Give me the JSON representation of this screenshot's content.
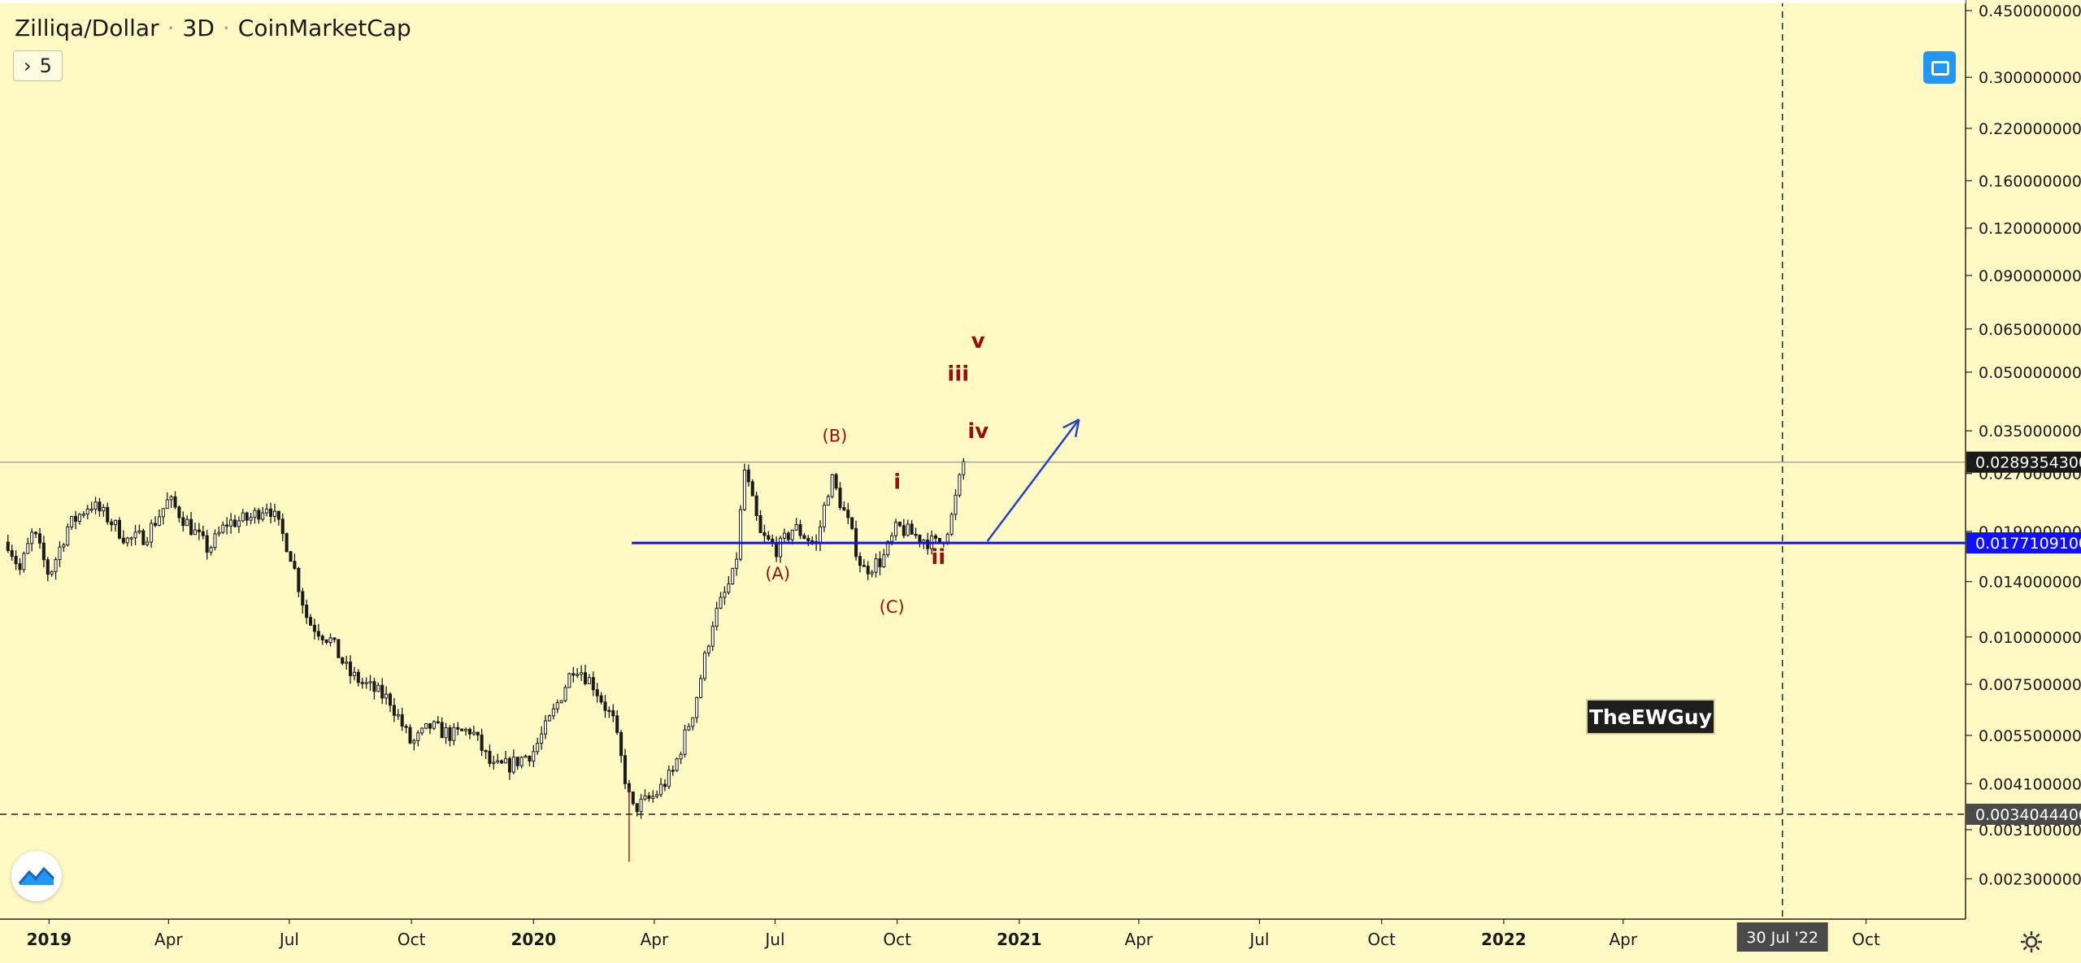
{
  "header": {
    "symbol": "Zilliqa/Dollar",
    "interval": "3D",
    "source": "CoinMarketCap",
    "indicator_count": "5"
  },
  "colors": {
    "background": "#fff9c4",
    "up_candle": "#ffffff",
    "down_candle": "#1a1a1a",
    "wick": "#1a1a1a",
    "annotation": "#9b0e0e",
    "support_line": "#1010ff",
    "arrow": "#2242d8"
  },
  "watermark": "TheEWGuy",
  "icons": [
    "chevron-right-icon",
    "fullscreen-icon",
    "tradingview-logo-icon",
    "gear-icon"
  ],
  "chart_data": {
    "type": "candlestick",
    "title": "Zilliqa/Dollar",
    "interval": "3D",
    "source": "CoinMarketCap",
    "y_scale": "log",
    "ylim": [
      0.0018,
      0.48
    ],
    "xlim": [
      "2018-11-25",
      "2022-12-15"
    ],
    "x_ticks": [
      {
        "label": "2019",
        "date": "2019-01-01"
      },
      {
        "label": "Apr",
        "date": "2019-04-01"
      },
      {
        "label": "Jul",
        "date": "2019-07-01"
      },
      {
        "label": "Oct",
        "date": "2019-10-01"
      },
      {
        "label": "2020",
        "date": "2020-01-01"
      },
      {
        "label": "Apr",
        "date": "2020-04-01"
      },
      {
        "label": "Jul",
        "date": "2020-07-01"
      },
      {
        "label": "Oct",
        "date": "2020-10-01"
      },
      {
        "label": "2021",
        "date": "2021-01-01"
      },
      {
        "label": "Apr",
        "date": "2021-04-01"
      },
      {
        "label": "Jul",
        "date": "2021-07-01"
      },
      {
        "label": "Oct",
        "date": "2021-10-01"
      },
      {
        "label": "2022",
        "date": "2022-01-01"
      },
      {
        "label": "Apr",
        "date": "2022-04-01"
      },
      {
        "label": "Oct",
        "date": "2022-10-01"
      }
    ],
    "y_ticks": [
      {
        "label": "0.4500000000",
        "value": 0.45
      },
      {
        "label": "0.3000000000",
        "value": 0.3
      },
      {
        "label": "0.2200000000",
        "value": 0.22
      },
      {
        "label": "0.1600000000",
        "value": 0.16
      },
      {
        "label": "0.1200000000",
        "value": 0.12
      },
      {
        "label": "0.0900000000",
        "value": 0.09
      },
      {
        "label": "0.0650000000",
        "value": 0.065
      },
      {
        "label": "0.0500000000",
        "value": 0.05
      },
      {
        "label": "0.0350000000",
        "value": 0.035
      },
      {
        "label": "0.0270000000",
        "value": 0.027
      },
      {
        "label": "0.0190000000",
        "value": 0.019
      },
      {
        "label": "0.0140000000",
        "value": 0.014
      },
      {
        "label": "0.0100000000",
        "value": 0.01
      },
      {
        "label": "0.0075000000",
        "value": 0.0075
      },
      {
        "label": "0.0055000000",
        "value": 0.0055
      },
      {
        "label": "0.0041000000",
        "value": 0.0041
      },
      {
        "label": "0.0031000000",
        "value": 0.0031
      },
      {
        "label": "0.0023000000",
        "value": 0.0023
      }
    ],
    "price_labels": [
      {
        "label": "0.0289354300",
        "value": 0.0289354,
        "style": "last-price"
      },
      {
        "label": "0.0177109100",
        "value": 0.0177109,
        "style": "support"
      },
      {
        "label": "0.0034044400",
        "value": 0.0034044,
        "style": "crosshair"
      }
    ],
    "crosshair": {
      "date": "2022-07-30",
      "date_label": "30 Jul '22",
      "value": 0.0034044
    },
    "support_line": {
      "value": 0.0177109,
      "from": "2020-03-15",
      "to": "2022-12-15"
    },
    "last_price_line": {
      "value": 0.0289354
    },
    "projection_arrow": {
      "from": {
        "date": "2020-12-08",
        "value": 0.0179
      },
      "to": {
        "date": "2021-02-15",
        "value": 0.0375
      }
    },
    "wave_labels": [
      {
        "text": "(A)",
        "date": "2020-07-03",
        "value": 0.0142,
        "weight": "normal"
      },
      {
        "text": "(B)",
        "date": "2020-08-15",
        "value": 0.0328,
        "weight": "normal"
      },
      {
        "text": "(C)",
        "date": "2020-09-27",
        "value": 0.0116,
        "weight": "normal"
      },
      {
        "text": "i",
        "date": "2020-10-01",
        "value": 0.0246,
        "weight": "bold"
      },
      {
        "text": "ii",
        "date": "2020-11-01",
        "value": 0.0156,
        "weight": "bold"
      },
      {
        "text": "iii",
        "date": "2020-11-16",
        "value": 0.0475,
        "weight": "bold"
      },
      {
        "text": "iv",
        "date": "2020-12-01",
        "value": 0.0335,
        "weight": "bold"
      },
      {
        "text": "v",
        "date": "2020-12-01",
        "value": 0.058,
        "weight": "bold"
      }
    ],
    "candle_interval_days": 3,
    "closes": [
      {
        "date": "2018-12-01",
        "value": 0.0178
      },
      {
        "date": "2018-12-10",
        "value": 0.015
      },
      {
        "date": "2018-12-20",
        "value": 0.019
      },
      {
        "date": "2019-01-01",
        "value": 0.0145
      },
      {
        "date": "2019-01-15",
        "value": 0.0195
      },
      {
        "date": "2019-02-01",
        "value": 0.0225
      },
      {
        "date": "2019-02-15",
        "value": 0.0205
      },
      {
        "date": "2019-03-01",
        "value": 0.018
      },
      {
        "date": "2019-03-15",
        "value": 0.0185
      },
      {
        "date": "2019-04-01",
        "value": 0.023
      },
      {
        "date": "2019-04-15",
        "value": 0.02
      },
      {
        "date": "2019-05-01",
        "value": 0.017
      },
      {
        "date": "2019-05-15",
        "value": 0.02
      },
      {
        "date": "2019-06-01",
        "value": 0.0205
      },
      {
        "date": "2019-06-15",
        "value": 0.0225
      },
      {
        "date": "2019-07-01",
        "value": 0.017
      },
      {
        "date": "2019-07-15",
        "value": 0.011
      },
      {
        "date": "2019-08-01",
        "value": 0.0098
      },
      {
        "date": "2019-08-15",
        "value": 0.008
      },
      {
        "date": "2019-09-01",
        "value": 0.0073
      },
      {
        "date": "2019-09-15",
        "value": 0.0068
      },
      {
        "date": "2019-10-01",
        "value": 0.0052
      },
      {
        "date": "2019-10-15",
        "value": 0.0058
      },
      {
        "date": "2019-11-01",
        "value": 0.0055
      },
      {
        "date": "2019-11-15",
        "value": 0.0057
      },
      {
        "date": "2019-12-01",
        "value": 0.0045
      },
      {
        "date": "2019-12-15",
        "value": 0.0046
      },
      {
        "date": "2020-01-01",
        "value": 0.005
      },
      {
        "date": "2020-01-15",
        "value": 0.0062
      },
      {
        "date": "2020-02-01",
        "value": 0.0085
      },
      {
        "date": "2020-02-15",
        "value": 0.0075
      },
      {
        "date": "2020-03-01",
        "value": 0.006
      },
      {
        "date": "2020-03-15",
        "value": 0.0035
      },
      {
        "date": "2020-04-01",
        "value": 0.0038
      },
      {
        "date": "2020-04-15",
        "value": 0.0044
      },
      {
        "date": "2020-05-01",
        "value": 0.0065
      },
      {
        "date": "2020-05-15",
        "value": 0.011
      },
      {
        "date": "2020-06-01",
        "value": 0.015
      },
      {
        "date": "2020-06-08",
        "value": 0.0275
      },
      {
        "date": "2020-06-20",
        "value": 0.0185
      },
      {
        "date": "2020-07-03",
        "value": 0.017
      },
      {
        "date": "2020-07-15",
        "value": 0.0195
      },
      {
        "date": "2020-08-01",
        "value": 0.0175
      },
      {
        "date": "2020-08-12",
        "value": 0.0265
      },
      {
        "date": "2020-08-25",
        "value": 0.02
      },
      {
        "date": "2020-09-05",
        "value": 0.015
      },
      {
        "date": "2020-09-20",
        "value": 0.016
      },
      {
        "date": "2020-10-01",
        "value": 0.0195
      },
      {
        "date": "2020-10-15",
        "value": 0.0185
      },
      {
        "date": "2020-11-01",
        "value": 0.0175
      },
      {
        "date": "2020-11-10",
        "value": 0.02
      },
      {
        "date": "2020-11-20",
        "value": 0.0289
      }
    ]
  }
}
